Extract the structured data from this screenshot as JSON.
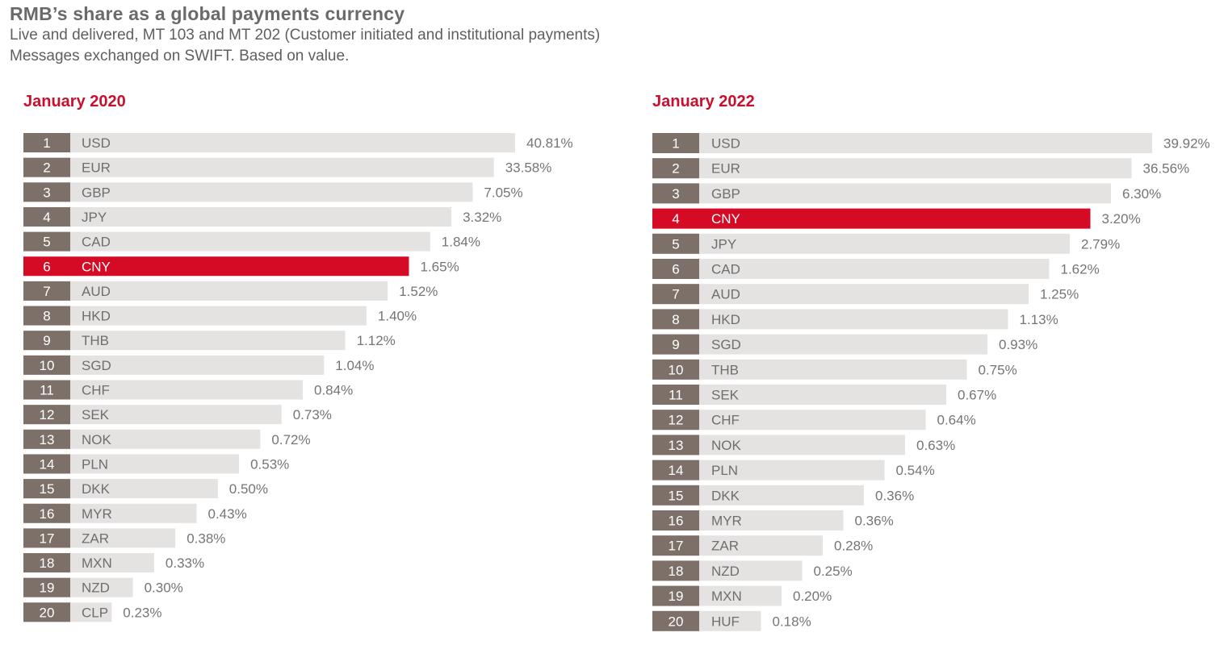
{
  "header": {
    "title": "RMB’s share as a global payments currency",
    "subtitle_line1": "Live and delivered,  MT 103 and MT 202 (Customer initiated and institutional payments)",
    "subtitle_line2": "Messages exchanged on SWIFT. Based on value."
  },
  "colors": {
    "highlight": "#d50a24",
    "panel_title": "#c8102e",
    "rank_box": "#7d7068",
    "bar": "#e5e3e2"
  },
  "chart_data": [
    {
      "type": "bar",
      "orientation": "horizontal",
      "title": "January 2020",
      "highlight": "CNY",
      "categories": [
        "USD",
        "EUR",
        "GBP",
        "JPY",
        "CAD",
        "CNY",
        "AUD",
        "HKD",
        "THB",
        "SGD",
        "CHF",
        "SEK",
        "NOK",
        "PLN",
        "DKK",
        "MYR",
        "ZAR",
        "MXN",
        "NZD",
        "CLP"
      ],
      "ranks": [
        "1",
        "2",
        "3",
        "4",
        "5",
        "6",
        "7",
        "8",
        "9",
        "10",
        "11",
        "12",
        "13",
        "14",
        "15",
        "16",
        "17",
        "18",
        "19",
        "20"
      ],
      "values": [
        40.81,
        33.58,
        7.05,
        3.32,
        1.84,
        1.65,
        1.52,
        1.4,
        1.12,
        1.04,
        0.84,
        0.73,
        0.72,
        0.53,
        0.5,
        0.43,
        0.38,
        0.33,
        0.3,
        0.23
      ],
      "value_labels": [
        "40.81%",
        "33.58%",
        "7.05%",
        "3.32%",
        "1.84%",
        "1.65%",
        "1.52%",
        "1.40%",
        "1.12%",
        "1.04%",
        "0.84%",
        "0.73%",
        "0.72%",
        "0.53%",
        "0.50%",
        "0.43%",
        "0.38%",
        "0.33%",
        "0.30%",
        "0.23%"
      ],
      "scale": "rank-ordered (not proportional)"
    },
    {
      "type": "bar",
      "orientation": "horizontal",
      "title": "January 2022",
      "highlight": "CNY",
      "categories": [
        "USD",
        "EUR",
        "GBP",
        "CNY",
        "JPY",
        "CAD",
        "AUD",
        "HKD",
        "SGD",
        "THB",
        "SEK",
        "CHF",
        "NOK",
        "PLN",
        "DKK",
        "MYR",
        "ZAR",
        "NZD",
        "MXN",
        "HUF"
      ],
      "ranks": [
        "1",
        "2",
        "3",
        "4",
        "5",
        "6",
        "7",
        "8",
        "9",
        "10",
        "11",
        "12",
        "13",
        "14",
        "15",
        "16",
        "17",
        "18",
        "19",
        "20"
      ],
      "values": [
        39.92,
        36.56,
        6.3,
        3.2,
        2.79,
        1.62,
        1.25,
        1.13,
        0.93,
        0.75,
        0.67,
        0.64,
        0.63,
        0.54,
        0.36,
        0.36,
        0.28,
        0.25,
        0.2,
        0.18
      ],
      "value_labels": [
        "39.92%",
        "36.56%",
        "6.30%",
        "3.20%",
        "2.79%",
        "1.62%",
        "1.25%",
        "1.13%",
        "0.93%",
        "0.75%",
        "0.67%",
        "0.64%",
        "0.63%",
        "0.54%",
        "0.36%",
        "0.36%",
        "0.28%",
        "0.25%",
        "0.20%",
        "0.18%"
      ],
      "scale": "rank-ordered (not proportional)"
    }
  ]
}
